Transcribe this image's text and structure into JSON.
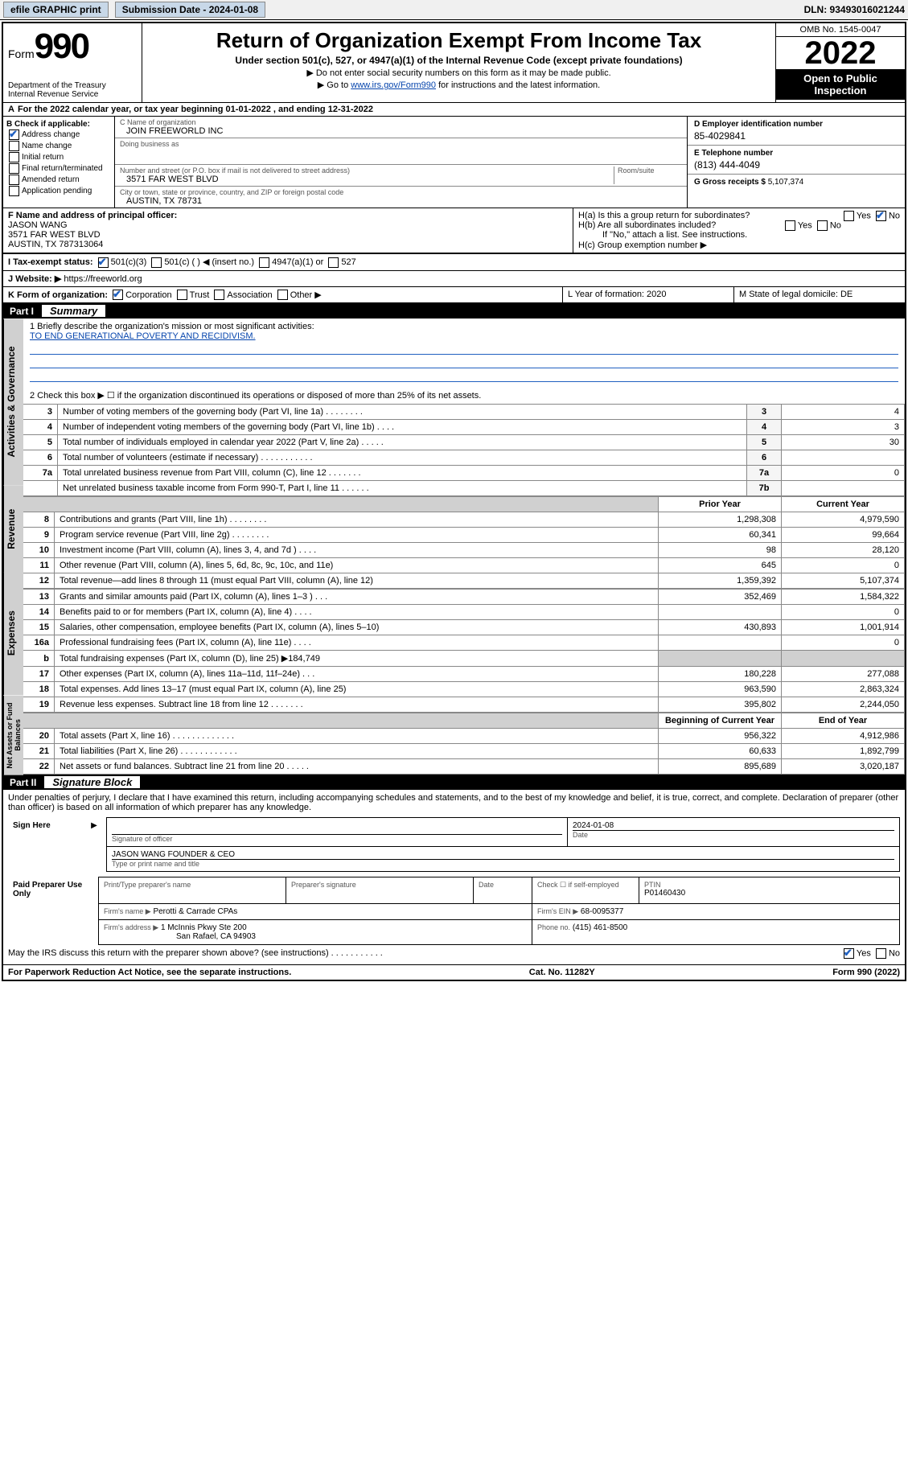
{
  "topbar": {
    "efile": "efile GRAPHIC print",
    "submission_label": "Submission Date - 2024-01-08",
    "dln": "DLN: 93493016021244"
  },
  "header": {
    "form_label": "Form",
    "form_number": "990",
    "dept": "Department of the Treasury",
    "irs": "Internal Revenue Service",
    "title": "Return of Organization Exempt From Income Tax",
    "subtitle": "Under section 501(c), 527, or 4947(a)(1) of the Internal Revenue Code (except private foundations)",
    "arrow1": "▶ Do not enter social security numbers on this form as it may be made public.",
    "arrow2_pre": "▶ Go to ",
    "arrow2_link": "www.irs.gov/Form990",
    "arrow2_post": " for instructions and the latest information.",
    "omb": "OMB No. 1545-0047",
    "year": "2022",
    "open_public": "Open to Public Inspection"
  },
  "row_a": "For the 2022 calendar year, or tax year beginning 01-01-2022    , and ending 12-31-2022",
  "box_b": {
    "title": "B Check if applicable:",
    "items": [
      "Address change",
      "Name change",
      "Initial return",
      "Final return/terminated",
      "Amended return",
      "Application pending"
    ]
  },
  "box_c": {
    "name_label": "C Name of organization",
    "name": "JOIN FREEWORLD INC",
    "dba_label": "Doing business as",
    "street_label": "Number and street (or P.O. box if mail is not delivered to street address)",
    "room_label": "Room/suite",
    "street": "3571 FAR WEST BLVD",
    "city_label": "City or town, state or province, country, and ZIP or foreign postal code",
    "city": "AUSTIN, TX  78731"
  },
  "box_d": {
    "label": "D Employer identification number",
    "value": "85-4029841"
  },
  "box_e": {
    "label": "E Telephone number",
    "value": "(813) 444-4049"
  },
  "box_g": {
    "label": "G Gross receipts $",
    "value": "5,107,374"
  },
  "box_f": {
    "label": "F Name and address of principal officer:",
    "name": "JASON WANG",
    "street": "3571 FAR WEST BLVD",
    "city": "AUSTIN, TX  787313064"
  },
  "box_h": {
    "ha": "H(a)  Is this a group return for subordinates?",
    "hb": "H(b)  Are all subordinates included?",
    "hb_note": "If \"No,\" attach a list. See instructions.",
    "hc": "H(c)  Group exemption number ▶"
  },
  "row_i": {
    "label": "I    Tax-exempt status:",
    "opts": [
      "501(c)(3)",
      "501(c) (  ) ◀ (insert no.)",
      "4947(a)(1) or",
      "527"
    ]
  },
  "row_j": {
    "label": "J   Website: ▶",
    "value": "https://freeworld.org"
  },
  "row_k": {
    "label": "K Form of organization:",
    "opts": [
      "Corporation",
      "Trust",
      "Association",
      "Other ▶"
    ]
  },
  "row_l": "L Year of formation: 2020",
  "row_m": "M State of legal domicile: DE",
  "part1": {
    "header": "Part I",
    "title": "Summary",
    "tabs": [
      "Activities & Governance",
      "Revenue",
      "Expenses",
      "Net Assets or Fund Balances"
    ],
    "line1_label": "1   Briefly describe the organization's mission or most significant activities:",
    "line1_value": "TO END GENERATIONAL POVERTY AND RECIDIVISM.",
    "line2": "2   Check this box ▶ ☐  if the organization discontinued its operations or disposed of more than 25% of its net assets.",
    "governance_rows": [
      {
        "n": "3",
        "desc": "Number of voting members of the governing body (Part VI, line 1a)  .   .   .   .   .   .   .   .",
        "box": "3",
        "val": "4"
      },
      {
        "n": "4",
        "desc": "Number of independent voting members of the governing body (Part VI, line 1b)  .   .   .   .",
        "box": "4",
        "val": "3"
      },
      {
        "n": "5",
        "desc": "Total number of individuals employed in calendar year 2022 (Part V, line 2a)   .   .   .   .   .",
        "box": "5",
        "val": "30"
      },
      {
        "n": "6",
        "desc": "Total number of volunteers (estimate if necessary)   .   .   .   .   .   .   .   .   .   .   .",
        "box": "6",
        "val": ""
      },
      {
        "n": "7a",
        "desc": "Total unrelated business revenue from Part VIII, column (C), line 12   .   .   .   .   .   .   .",
        "box": "7a",
        "val": "0"
      },
      {
        "n": "",
        "desc": "Net unrelated business taxable income from Form 990-T, Part I, line 11   .   .   .   .   .   .",
        "box": "7b",
        "val": ""
      }
    ],
    "col_headers": [
      "Prior Year",
      "Current Year"
    ],
    "revenue_rows": [
      {
        "n": "8",
        "desc": "Contributions and grants (Part VIII, line 1h)   .   .   .   .   .   .   .   .",
        "py": "1,298,308",
        "cy": "4,979,590"
      },
      {
        "n": "9",
        "desc": "Program service revenue (Part VIII, line 2g)   .   .   .   .   .   .   .   .",
        "py": "60,341",
        "cy": "99,664"
      },
      {
        "n": "10",
        "desc": "Investment income (Part VIII, column (A), lines 3, 4, and 7d )   .   .   .   .",
        "py": "98",
        "cy": "28,120"
      },
      {
        "n": "11",
        "desc": "Other revenue (Part VIII, column (A), lines 5, 6d, 8c, 9c, 10c, and 11e)",
        "py": "645",
        "cy": "0"
      },
      {
        "n": "12",
        "desc": "Total revenue—add lines 8 through 11 (must equal Part VIII, column (A), line 12)",
        "py": "1,359,392",
        "cy": "5,107,374"
      }
    ],
    "expense_rows": [
      {
        "n": "13",
        "desc": "Grants and similar amounts paid (Part IX, column (A), lines 1–3 )   .   .   .",
        "py": "352,469",
        "cy": "1,584,322"
      },
      {
        "n": "14",
        "desc": "Benefits paid to or for members (Part IX, column (A), line 4)  .   .   .   .",
        "py": "",
        "cy": "0"
      },
      {
        "n": "15",
        "desc": "Salaries, other compensation, employee benefits (Part IX, column (A), lines 5–10)",
        "py": "430,893",
        "cy": "1,001,914"
      },
      {
        "n": "16a",
        "desc": "Professional fundraising fees (Part IX, column (A), line 11e)   .   .   .   .",
        "py": "",
        "cy": "0"
      },
      {
        "n": "b",
        "desc": "Total fundraising expenses (Part IX, column (D), line 25) ▶184,749",
        "py": "SHADE",
        "cy": "SHADE"
      },
      {
        "n": "17",
        "desc": "Other expenses (Part IX, column (A), lines 11a–11d, 11f–24e)  .   .   .",
        "py": "180,228",
        "cy": "277,088"
      },
      {
        "n": "18",
        "desc": "Total expenses. Add lines 13–17 (must equal Part IX, column (A), line 25)",
        "py": "963,590",
        "cy": "2,863,324"
      },
      {
        "n": "19",
        "desc": "Revenue less expenses. Subtract line 18 from line 12  .   .   .   .   .   .   .",
        "py": "395,802",
        "cy": "2,244,050"
      }
    ],
    "net_headers": [
      "Beginning of Current Year",
      "End of Year"
    ],
    "net_rows": [
      {
        "n": "20",
        "desc": "Total assets (Part X, line 16)  .   .   .   .   .   .   .   .   .   .   .   .   .",
        "py": "956,322",
        "cy": "4,912,986"
      },
      {
        "n": "21",
        "desc": "Total liabilities (Part X, line 26)  .   .   .   .   .   .   .   .   .   .   .   .",
        "py": "60,633",
        "cy": "1,892,799"
      },
      {
        "n": "22",
        "desc": "Net assets or fund balances. Subtract line 21 from line 20  .   .   .   .   .",
        "py": "895,689",
        "cy": "3,020,187"
      }
    ]
  },
  "part2": {
    "header": "Part II",
    "title": "Signature Block",
    "penalty": "Under penalties of perjury, I declare that I have examined this return, including accompanying schedules and statements, and to the best of my knowledge and belief, it is true, correct, and complete. Declaration of preparer (other than officer) is based on all information of which preparer has any knowledge.",
    "sign_here": "Sign Here",
    "sig_officer": "Signature of officer",
    "sig_date": "2024-01-08",
    "date_label": "Date",
    "officer_name": "JASON WANG FOUNDER & CEO",
    "officer_sub": "Type or print name and title",
    "paid_label": "Paid Preparer Use Only",
    "prep_cols": [
      "Print/Type preparer's name",
      "Preparer's signature",
      "Date"
    ],
    "check_if": "Check ☐ if self-employed",
    "ptin_label": "PTIN",
    "ptin": "P01460430",
    "firm_name_label": "Firm's name    ▶",
    "firm_name": "Perotti & Carrade CPAs",
    "firm_ein_label": "Firm's EIN ▶",
    "firm_ein": "68-0095377",
    "firm_addr_label": "Firm's address ▶",
    "firm_addr1": "1 McInnis Pkwy Ste 200",
    "firm_addr2": "San Rafael, CA  94903",
    "phone_label": "Phone no.",
    "phone": "(415) 461-8500",
    "discuss": "May the IRS discuss this return with the preparer shown above? (see instructions)   .   .   .   .   .   .   .   .   .   .   ."
  },
  "footer": {
    "left": "For Paperwork Reduction Act Notice, see the separate instructions.",
    "mid": "Cat. No. 11282Y",
    "right": "Form 990 (2022)"
  }
}
